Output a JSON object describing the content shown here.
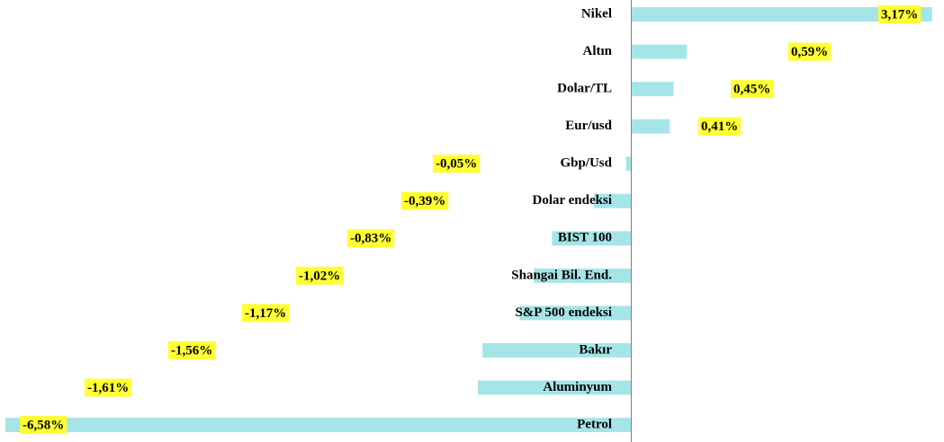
{
  "chart_data": {
    "type": "bar",
    "orientation": "horizontal",
    "categories": [
      "Nikel",
      "Altın",
      "Dolar/TL",
      "Eur/usd",
      "Gbp/Usd",
      "Dolar endeksi",
      "BIST 100",
      "Shangai Bil. End.",
      "S&P 500 endeksi",
      "Bakır",
      "Aluminyum",
      "Petrol"
    ],
    "values": [
      3.17,
      0.59,
      0.45,
      0.41,
      -0.05,
      -0.39,
      -0.83,
      -1.02,
      -1.17,
      -1.56,
      -1.61,
      -6.58
    ],
    "value_labels": [
      "3,17%",
      "0,59%",
      "0,45%",
      "0,41%",
      "-0,05%",
      "-0,39%",
      "-0,83%",
      "-1,02%",
      "-1,17%",
      "-1,56%",
      "-1,61%",
      "-6,58%"
    ],
    "color": "#a6e5e7",
    "label_color": "#ffff33"
  }
}
